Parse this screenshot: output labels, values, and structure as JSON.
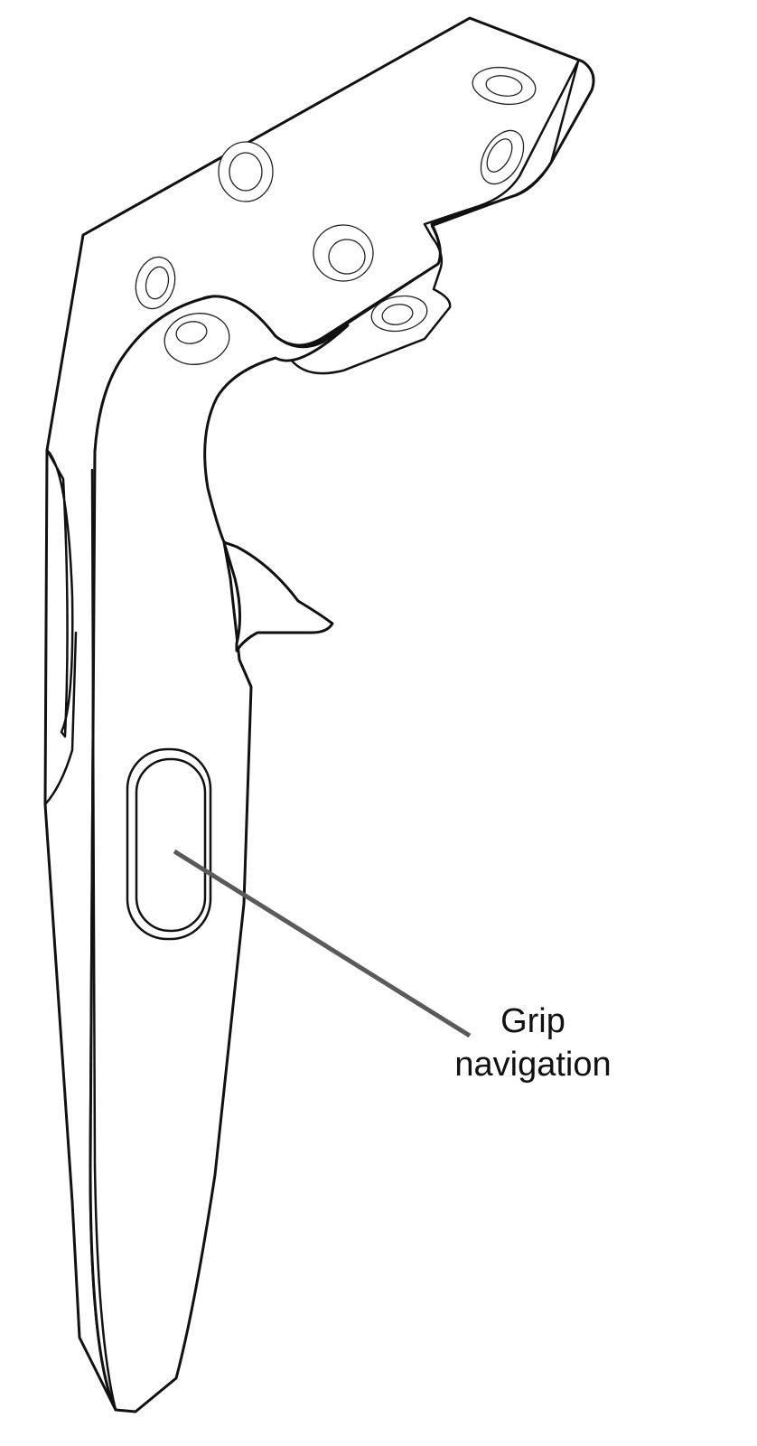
{
  "figure": {
    "callout": {
      "line1": "Grip",
      "line2": "navigation"
    },
    "colors": {
      "outline": "#111111",
      "leader_line": "#5a5a5a",
      "background": "#ffffff"
    },
    "parts": [
      "controller-body",
      "tracking-ring",
      "trigger",
      "grip-button",
      "tracking-sensor"
    ]
  }
}
